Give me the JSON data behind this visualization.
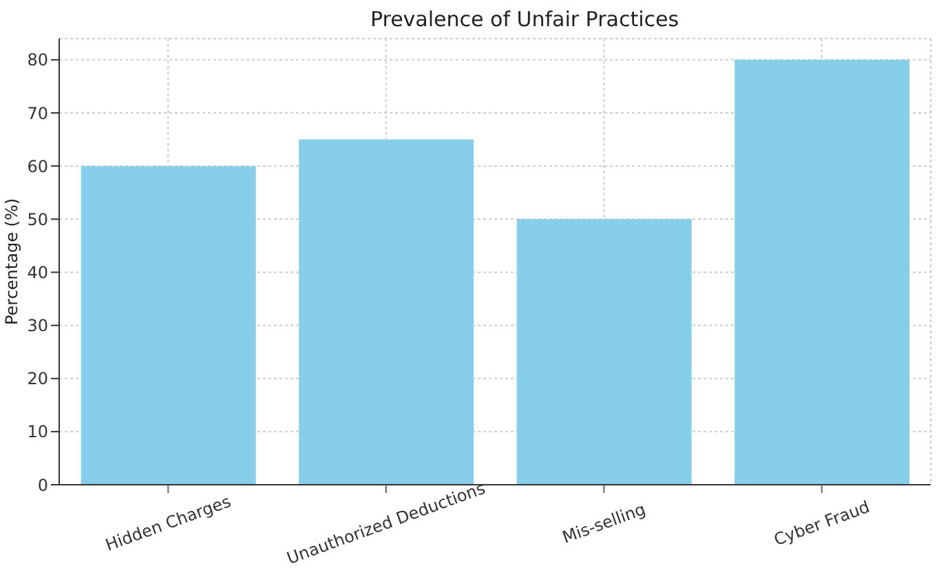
{
  "chart_data": {
    "type": "bar",
    "title": "Prevalence of Unfair Practices",
    "ylabel": "Percentage (%)",
    "categories": [
      "Hidden Charges",
      "Unauthorized Deductions",
      "Mis-selling",
      "Cyber Fraud"
    ],
    "values": [
      60,
      65,
      50,
      80
    ],
    "color": "#87ceeb",
    "ylim": [
      0,
      84
    ],
    "yticks": [
      0,
      10,
      20,
      30,
      40,
      50,
      60,
      70,
      80
    ],
    "grid": true
  }
}
